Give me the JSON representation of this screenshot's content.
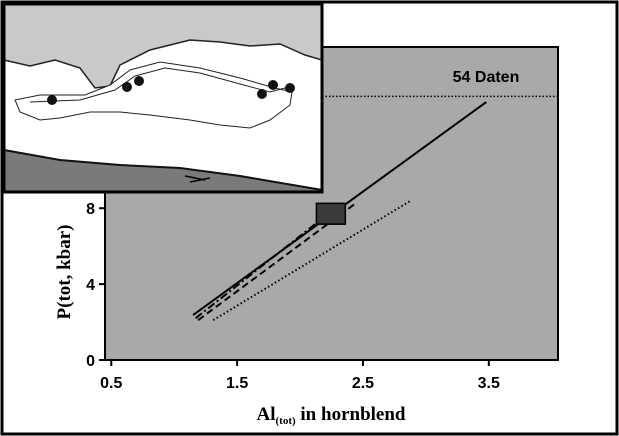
{
  "chart_data": {
    "type": "line",
    "x_label": {
      "main": "Al",
      "sub": "(tot)",
      "rest": " in hornblend"
    },
    "y_label": "P(tot, kbar)",
    "annotation": "54 Daten",
    "reference_y": 13.9,
    "xlim": [
      0.45,
      4.05
    ],
    "ylim": [
      0,
      16.5
    ],
    "xticks": [
      0.5,
      1.5,
      2.5,
      3.5
    ],
    "yticks": [
      0,
      4,
      8
    ],
    "series": [
      {
        "style": "solid",
        "color": "#000000",
        "x": [
          1.15,
          3.48
        ],
        "values": [
          2.37,
          13.6
        ]
      },
      {
        "style": "dashed",
        "color": "#000000",
        "x": [
          1.19,
          2.44
        ],
        "values": [
          2.1,
          8.25
        ]
      },
      {
        "style": "dashdot",
        "color": "#000000",
        "x": [
          1.17,
          2.28
        ],
        "values": [
          2.2,
          8.0
        ]
      },
      {
        "style": "dotted",
        "color": "#000000",
        "x": [
          1.31,
          2.88
        ],
        "values": [
          2.1,
          8.4
        ]
      }
    ],
    "box": {
      "x": [
        2.13,
        2.36
      ],
      "y": [
        7.16,
        8.26
      ],
      "color": "#3a3a3a"
    }
  }
}
